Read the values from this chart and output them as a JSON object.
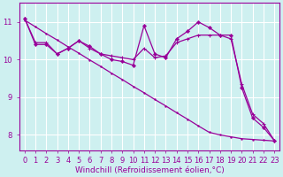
{
  "background_color": "#cef0f0",
  "grid_color": "#ffffff",
  "line_color": "#990099",
  "xlabel": "Windchill (Refroidissement éolien,°C)",
  "xlabel_fontsize": 6.5,
  "yticks": [
    8,
    9,
    10,
    11
  ],
  "xticks": [
    0,
    1,
    2,
    3,
    4,
    5,
    6,
    7,
    8,
    9,
    10,
    11,
    12,
    13,
    14,
    15,
    16,
    17,
    18,
    19,
    20,
    21,
    22,
    23
  ],
  "xlim": [
    -0.5,
    23.5
  ],
  "ylim": [
    7.6,
    11.5
  ],
  "series1_x": [
    0,
    1,
    2,
    3,
    4,
    5,
    6,
    7,
    8,
    9,
    10,
    11,
    12,
    13,
    14,
    15,
    16,
    17,
    18,
    19,
    20,
    21,
    22,
    23
  ],
  "series1_y": [
    11.1,
    10.4,
    10.4,
    10.15,
    10.3,
    10.5,
    10.35,
    10.15,
    10.0,
    9.95,
    9.85,
    10.9,
    10.15,
    10.05,
    10.55,
    10.75,
    11.0,
    10.85,
    10.65,
    10.65,
    9.25,
    8.45,
    8.2,
    7.85
  ],
  "series2_x": [
    0,
    1,
    2,
    3,
    4,
    5,
    6,
    7,
    8,
    9,
    10,
    11,
    12,
    13,
    14,
    15,
    16,
    17,
    18,
    19,
    20,
    21,
    22,
    23
  ],
  "series2_y": [
    11.1,
    10.45,
    10.45,
    10.15,
    10.3,
    10.5,
    10.3,
    10.15,
    10.1,
    10.05,
    10.0,
    10.3,
    10.05,
    10.1,
    10.45,
    10.55,
    10.65,
    10.65,
    10.65,
    10.55,
    9.35,
    8.55,
    8.3,
    7.85
  ],
  "series3_x": [
    0,
    1,
    2,
    3,
    4,
    5,
    6,
    7,
    8,
    9,
    10,
    11,
    12,
    13,
    14,
    15,
    16,
    17,
    18,
    19,
    20,
    21,
    22,
    23
  ],
  "series3_y": [
    11.05,
    10.87,
    10.69,
    10.52,
    10.34,
    10.17,
    9.99,
    9.82,
    9.64,
    9.47,
    9.29,
    9.12,
    8.94,
    8.77,
    8.59,
    8.42,
    8.24,
    8.07,
    8.0,
    7.95,
    7.9,
    7.88,
    7.86,
    7.84
  ],
  "tick_fontsize": 6.0,
  "linewidth": 0.9,
  "marker_size": 2.5
}
